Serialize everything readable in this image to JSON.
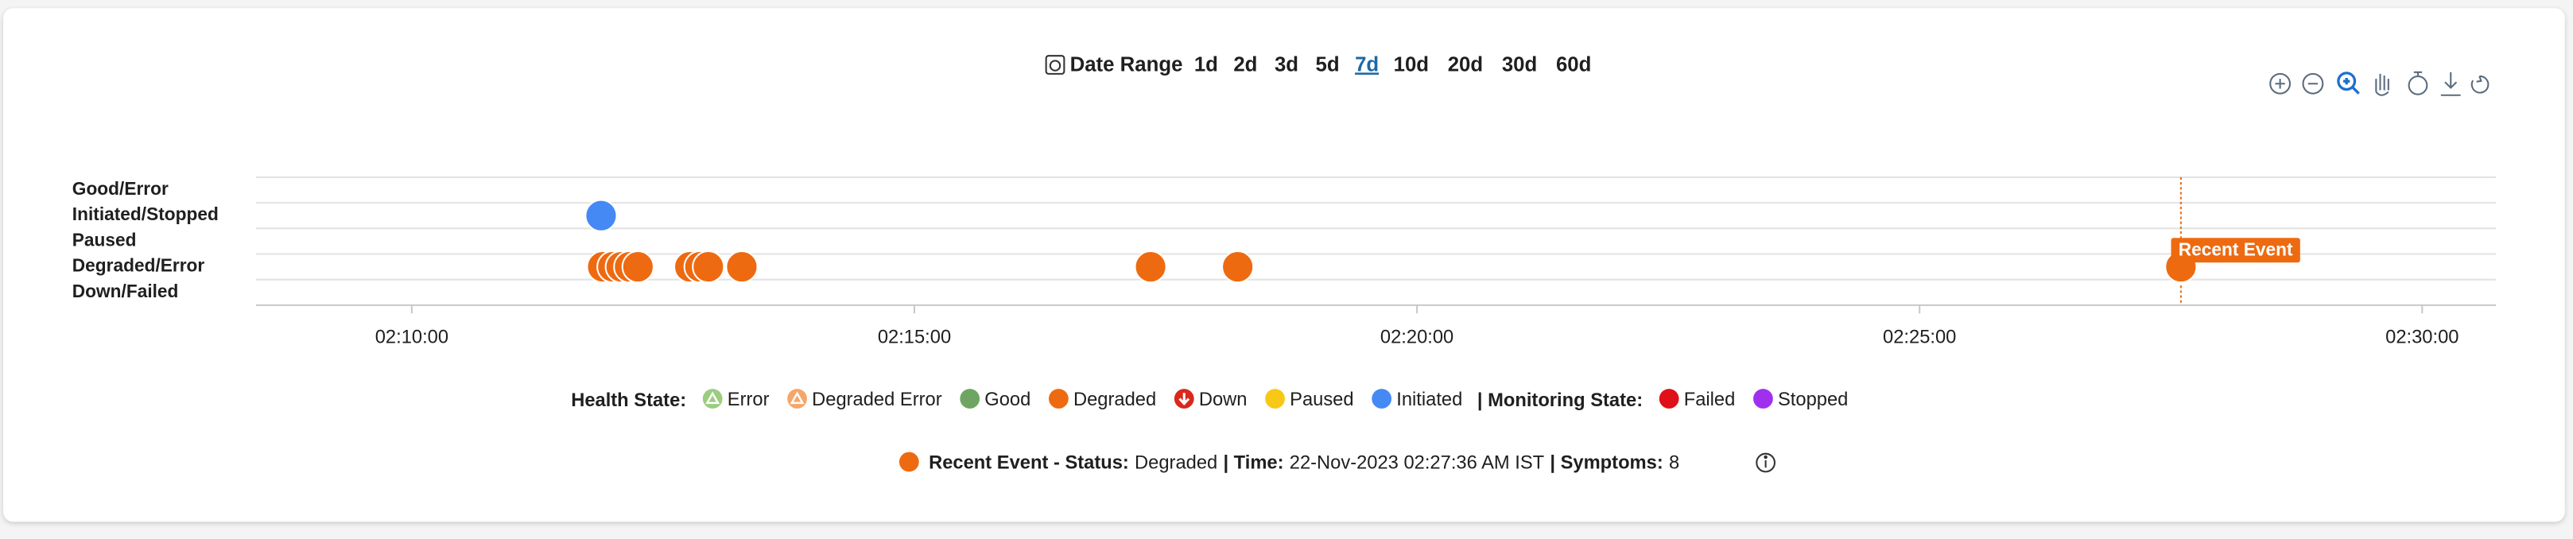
{
  "header": {
    "date_range_label": "Date Range",
    "ranges": [
      "1d",
      "2d",
      "3d",
      "5d",
      "7d",
      "10d",
      "20d",
      "30d",
      "60d"
    ],
    "selected": "7d"
  },
  "chart_data": {
    "type": "scatter",
    "categories": [
      "Good/Error",
      "Initiated/Stopped",
      "Paused",
      "Degraded/Error",
      "Down/Failed"
    ],
    "xlim": [
      "02:08:27",
      "02:30:44"
    ],
    "xticks": [
      "02:10:00",
      "02:15:00",
      "02:20:00",
      "02:25:00",
      "02:30:00"
    ],
    "grid": true,
    "series": [
      {
        "color": "#4589f5",
        "x": [
          "02:11:53"
        ],
        "y": [
          "Initiated/Stopped"
        ]
      },
      {
        "color": "#ee6a10",
        "x": [
          "02:11:54",
          "02:12:00",
          "02:12:05",
          "02:12:10",
          "02:12:15",
          "02:12:46",
          "02:12:52",
          "02:12:57",
          "02:13:17",
          "02:17:21",
          "02:18:13",
          "02:27:36"
        ],
        "y": [
          "Degraded/Error",
          "Degraded/Error",
          "Degraded/Error",
          "Degraded/Error",
          "Degraded/Error",
          "Degraded/Error",
          "Degraded/Error",
          "Degraded/Error",
          "Degraded/Error",
          "Degraded/Error",
          "Degraded/Error",
          "Degraded/Error"
        ]
      }
    ],
    "annotation": {
      "text": "Recent Event",
      "x": "02:27:36",
      "color": "#ee6a10"
    }
  },
  "legend": {
    "health_label": "Health State:",
    "health_items": [
      {
        "label": "Error",
        "color": "#9ccc7f",
        "icon": "triangle"
      },
      {
        "label": "Degraded Error",
        "color": "#f5a66a",
        "icon": "triangle"
      },
      {
        "label": "Good",
        "color": "#6fa562",
        "icon": "circle"
      },
      {
        "label": "Degraded",
        "color": "#ee6a10",
        "icon": "circle"
      },
      {
        "label": "Down",
        "color": "#d9281c",
        "icon": "arrow"
      },
      {
        "label": "Paused",
        "color": "#f7c815",
        "icon": "circle"
      },
      {
        "label": "Initiated",
        "color": "#4589f5",
        "icon": "circle"
      }
    ],
    "monitoring_label": "| Monitoring State:",
    "monitoring_items": [
      {
        "label": "Failed",
        "color": "#e0101a",
        "icon": "circle"
      },
      {
        "label": "Stopped",
        "color": "#a030ee",
        "icon": "circle"
      }
    ]
  },
  "status": {
    "color": "#ee6a10",
    "parts": [
      {
        "text": "Recent Event - Status:",
        "bold": true
      },
      {
        "text": "Degraded",
        "bold": false
      },
      {
        "text": "| Time:",
        "bold": true
      },
      {
        "text": "22-Nov-2023 02:27:36 AM IST",
        "bold": false
      },
      {
        "text": "| Symptoms:",
        "bold": true
      },
      {
        "text": "8",
        "bold": false
      }
    ]
  }
}
